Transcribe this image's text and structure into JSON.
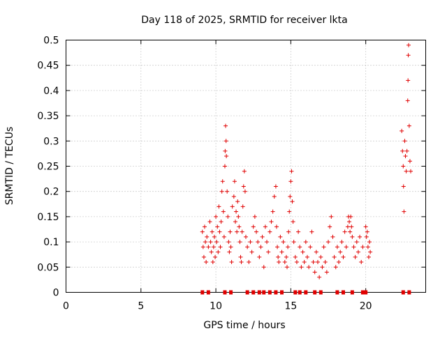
{
  "chart_data": {
    "type": "scatter",
    "title": "Day 118 of 2025, SRMTID for receiver lkta",
    "xlabel": "GPS time / hours",
    "ylabel": "SRMTID / TECUs",
    "xlim": [
      0,
      24
    ],
    "ylim": [
      0,
      0.5
    ],
    "x_ticks": [
      0,
      5,
      10,
      15,
      20
    ],
    "y_ticks": [
      0,
      0.05,
      0.1,
      0.15,
      0.2,
      0.25,
      0.3,
      0.35,
      0.4,
      0.45,
      0.5
    ],
    "x_tick_labels": [
      "0",
      "5",
      "10",
      "15",
      "20"
    ],
    "y_tick_labels": [
      "0",
      "0.05",
      "0.1",
      "0.15",
      "0.2",
      "0.25",
      "0.3",
      "0.35",
      "0.4",
      "0.45",
      "0.5"
    ],
    "grid": true,
    "marker": "plus",
    "color": "#e00000",
    "series": [
      {
        "values": [
          [
            9.1,
            0.12
          ],
          [
            9.15,
            0.09
          ],
          [
            9.2,
            0.07
          ],
          [
            9.25,
            0.13
          ],
          [
            9.3,
            0.1
          ],
          [
            9.35,
            0.06
          ],
          [
            9.4,
            0.11
          ],
          [
            9.5,
            0.09
          ],
          [
            9.6,
            0.14
          ],
          [
            9.65,
            0.1
          ],
          [
            9.7,
            0.08
          ],
          [
            9.75,
            0.12
          ],
          [
            9.8,
            0.06
          ],
          [
            9.85,
            0.09
          ],
          [
            9.9,
            0.11
          ],
          [
            9.95,
            0.07
          ],
          [
            10.0,
            0.15
          ],
          [
            10.05,
            0.1
          ],
          [
            10.1,
            0.13
          ],
          [
            10.15,
            0.08
          ],
          [
            10.2,
            0.17
          ],
          [
            10.25,
            0.12
          ],
          [
            10.3,
            0.09
          ],
          [
            10.35,
            0.14
          ],
          [
            10.4,
            0.2
          ],
          [
            10.45,
            0.22
          ],
          [
            10.5,
            0.16
          ],
          [
            10.55,
            0.11
          ],
          [
            10.6,
            0.25
          ],
          [
            10.62,
            0.28
          ],
          [
            10.65,
            0.33
          ],
          [
            10.68,
            0.3
          ],
          [
            10.7,
            0.27
          ],
          [
            10.75,
            0.2
          ],
          [
            10.8,
            0.15
          ],
          [
            10.85,
            0.1
          ],
          [
            10.9,
            0.08
          ],
          [
            10.95,
            0.12
          ],
          [
            11.0,
            0.09
          ],
          [
            11.05,
            0.06
          ],
          [
            11.1,
            0.17
          ],
          [
            11.2,
            0.19
          ],
          [
            11.25,
            0.22
          ],
          [
            11.3,
            0.14
          ],
          [
            11.35,
            0.16
          ],
          [
            11.4,
            0.12
          ],
          [
            11.45,
            0.18
          ],
          [
            11.5,
            0.15
          ],
          [
            11.55,
            0.13
          ],
          [
            11.6,
            0.1
          ],
          [
            11.65,
            0.07
          ],
          [
            11.7,
            0.06
          ],
          [
            11.75,
            0.12
          ],
          [
            11.8,
            0.17
          ],
          [
            11.85,
            0.21
          ],
          [
            11.9,
            0.24
          ],
          [
            11.95,
            0.2
          ],
          [
            12.0,
            0.11
          ],
          [
            12.1,
            0.09
          ],
          [
            12.2,
            0.06
          ],
          [
            12.3,
            0.1
          ],
          [
            12.4,
            0.08
          ],
          [
            12.5,
            0.13
          ],
          [
            12.6,
            0.15
          ],
          [
            12.7,
            0.12
          ],
          [
            12.8,
            0.1
          ],
          [
            12.9,
            0.07
          ],
          [
            13.0,
            0.09
          ],
          [
            13.1,
            0.11
          ],
          [
            13.2,
            0.05
          ],
          [
            13.3,
            0.13
          ],
          [
            13.4,
            0.1
          ],
          [
            13.5,
            0.08
          ],
          [
            13.6,
            0.12
          ],
          [
            13.7,
            0.14
          ],
          [
            13.8,
            0.16
          ],
          [
            13.9,
            0.19
          ],
          [
            14.0,
            0.21
          ],
          [
            14.05,
            0.13
          ],
          [
            14.1,
            0.09
          ],
          [
            14.15,
            0.07
          ],
          [
            14.2,
            0.06
          ],
          [
            14.3,
            0.11
          ],
          [
            14.4,
            0.08
          ],
          [
            14.5,
            0.1
          ],
          [
            14.6,
            0.06
          ],
          [
            14.7,
            0.07
          ],
          [
            14.75,
            0.05
          ],
          [
            14.8,
            0.09
          ],
          [
            14.85,
            0.12
          ],
          [
            14.9,
            0.16
          ],
          [
            14.95,
            0.19
          ],
          [
            15.0,
            0.22
          ],
          [
            15.05,
            0.24
          ],
          [
            15.1,
            0.18
          ],
          [
            15.15,
            0.14
          ],
          [
            15.2,
            0.1
          ],
          [
            15.3,
            0.07
          ],
          [
            15.4,
            0.06
          ],
          [
            15.5,
            0.12
          ],
          [
            15.6,
            0.09
          ],
          [
            15.7,
            0.05
          ],
          [
            15.8,
            0.08
          ],
          [
            15.9,
            0.06
          ],
          [
            16.0,
            0.1
          ],
          [
            16.1,
            0.07
          ],
          [
            16.2,
            0.05
          ],
          [
            16.3,
            0.09
          ],
          [
            16.4,
            0.12
          ],
          [
            16.5,
            0.06
          ],
          [
            16.6,
            0.04
          ],
          [
            16.7,
            0.08
          ],
          [
            16.8,
            0.06
          ],
          [
            16.9,
            0.03
          ],
          [
            17.0,
            0.07
          ],
          [
            17.1,
            0.05
          ],
          [
            17.2,
            0.09
          ],
          [
            17.3,
            0.06
          ],
          [
            17.4,
            0.04
          ],
          [
            17.5,
            0.1
          ],
          [
            17.6,
            0.13
          ],
          [
            17.7,
            0.15
          ],
          [
            17.8,
            0.11
          ],
          [
            17.9,
            0.07
          ],
          [
            18.0,
            0.05
          ],
          [
            18.1,
            0.09
          ],
          [
            18.2,
            0.06
          ],
          [
            18.3,
            0.08
          ],
          [
            18.4,
            0.1
          ],
          [
            18.5,
            0.07
          ],
          [
            18.6,
            0.12
          ],
          [
            18.7,
            0.09
          ],
          [
            18.8,
            0.13
          ],
          [
            18.85,
            0.15
          ],
          [
            18.9,
            0.14
          ],
          [
            18.95,
            0.12
          ],
          [
            19.0,
            0.15
          ],
          [
            19.05,
            0.13
          ],
          [
            19.1,
            0.11
          ],
          [
            19.2,
            0.09
          ],
          [
            19.3,
            0.07
          ],
          [
            19.4,
            0.1
          ],
          [
            19.5,
            0.08
          ],
          [
            19.6,
            0.11
          ],
          [
            19.7,
            0.06
          ],
          [
            19.8,
            0.09
          ],
          [
            20.0,
            0.13
          ],
          [
            20.05,
            0.11
          ],
          [
            20.1,
            0.12
          ],
          [
            20.15,
            0.09
          ],
          [
            20.2,
            0.07
          ],
          [
            20.25,
            0.1
          ],
          [
            20.3,
            0.08
          ],
          [
            22.4,
            0.32
          ],
          [
            22.45,
            0.28
          ],
          [
            22.5,
            0.25
          ],
          [
            22.52,
            0.21
          ],
          [
            22.55,
            0.16
          ],
          [
            22.6,
            0.3
          ],
          [
            22.65,
            0.27
          ],
          [
            22.7,
            0.24
          ],
          [
            22.75,
            0.28
          ],
          [
            22.8,
            0.38
          ],
          [
            22.82,
            0.42
          ],
          [
            22.84,
            0.47
          ],
          [
            22.86,
            0.49
          ],
          [
            22.9,
            0.33
          ],
          [
            22.95,
            0.26
          ],
          [
            23.0,
            0.24
          ]
        ]
      }
    ],
    "zero_markers_x": [
      9.1,
      9.5,
      10.6,
      11.0,
      12.1,
      12.5,
      12.9,
      13.2,
      13.6,
      14.0,
      14.4,
      15.3,
      15.6,
      16.0,
      16.6,
      17.0,
      18.1,
      18.5,
      19.1,
      19.8,
      20.0,
      22.5,
      22.9
    ]
  }
}
